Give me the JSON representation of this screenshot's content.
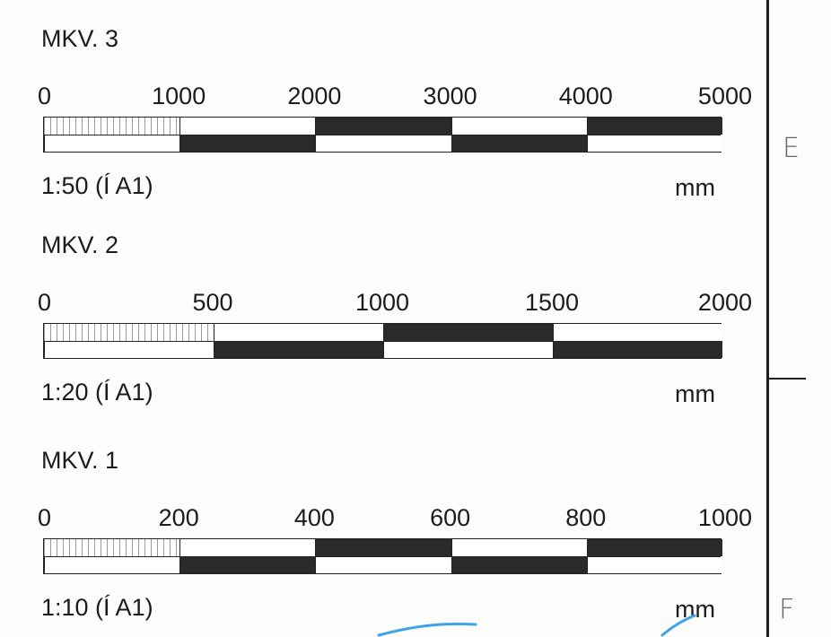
{
  "scales": [
    {
      "title": "MKV. 3",
      "ratio": "1:50 (Í A1)",
      "unit": "mm",
      "ticks": [
        "0",
        "1000",
        "2000",
        "3000",
        "4000",
        "5000"
      ],
      "max_value": 5000
    },
    {
      "title": "MKV. 2",
      "ratio": "1:20 (Í A1)",
      "unit": "mm",
      "ticks": [
        "0",
        "500",
        "1000",
        "1500",
        "2000"
      ],
      "max_value": 2000
    },
    {
      "title": "MKV. 1",
      "ratio": "1:10 (Í A1)",
      "unit": "mm",
      "ticks": [
        "0",
        "200",
        "400",
        "600",
        "800",
        "1000"
      ],
      "max_value": 1000
    }
  ],
  "frame": {
    "row_letters": [
      "E",
      "F"
    ]
  },
  "colors": {
    "ink": "#2a2a2a",
    "hatch": "#9a9a9a",
    "annotation_pen": "#3fa3e6"
  }
}
